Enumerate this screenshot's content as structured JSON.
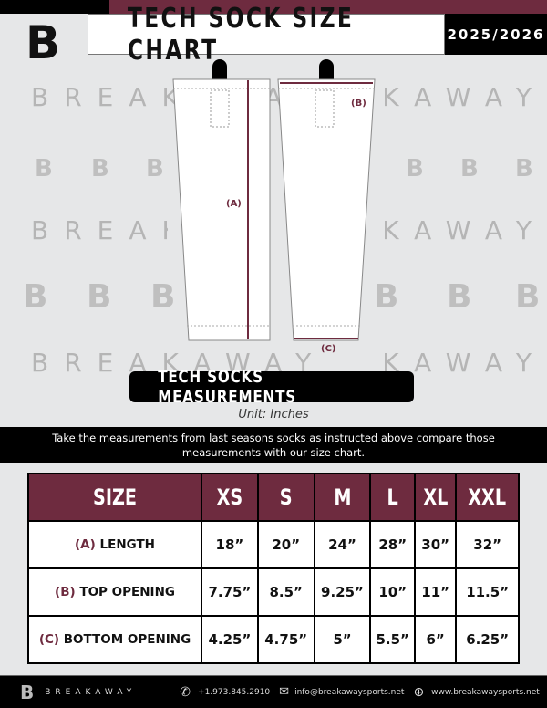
{
  "header": {
    "title": "TECH SOCK SIZE CHART",
    "season": "2025/2026",
    "logo": "B"
  },
  "watermark": {
    "text": "BREAKAWAY",
    "logo": "B"
  },
  "diagram": {
    "length_label": "(A)",
    "top_label": "(B)",
    "bottom_label": "(C)"
  },
  "section_title": "TECH SOCKS MEASUREMENTS",
  "unit": "Unit: Inches",
  "instructions": "Take the measurements from last seasons socks as instructed above compare those measurements  with our size chart.",
  "table": {
    "header": [
      "SIZE",
      "XS",
      "S",
      "M",
      "L",
      "XL",
      "XXL"
    ],
    "rows": [
      {
        "code": "(A)",
        "name": "LENGTH",
        "values": [
          "18”",
          "20”",
          "24”",
          "28”",
          "30”",
          "32”"
        ]
      },
      {
        "code": "(B)",
        "name": "TOP OPENING",
        "values": [
          "7.75”",
          "8.5”",
          "9.25”",
          "10”",
          "11”",
          "11.5”"
        ]
      },
      {
        "code": "(C)",
        "name": "BOTTOM OPENING",
        "values": [
          "4.25”",
          "4.75”",
          "5”",
          "5.5”",
          "6”",
          "6.25”"
        ]
      }
    ]
  },
  "footer": {
    "brand": "BREAKAWAY",
    "phone": "+1.973.845.2910",
    "email": "info@breakawaysports.net",
    "website": "www.breakawaysports.net",
    "icons": [
      "phone-icon",
      "mail-icon",
      "globe-icon"
    ]
  },
  "colors": {
    "maroon": "#6e2b3f",
    "black": "#000000"
  }
}
